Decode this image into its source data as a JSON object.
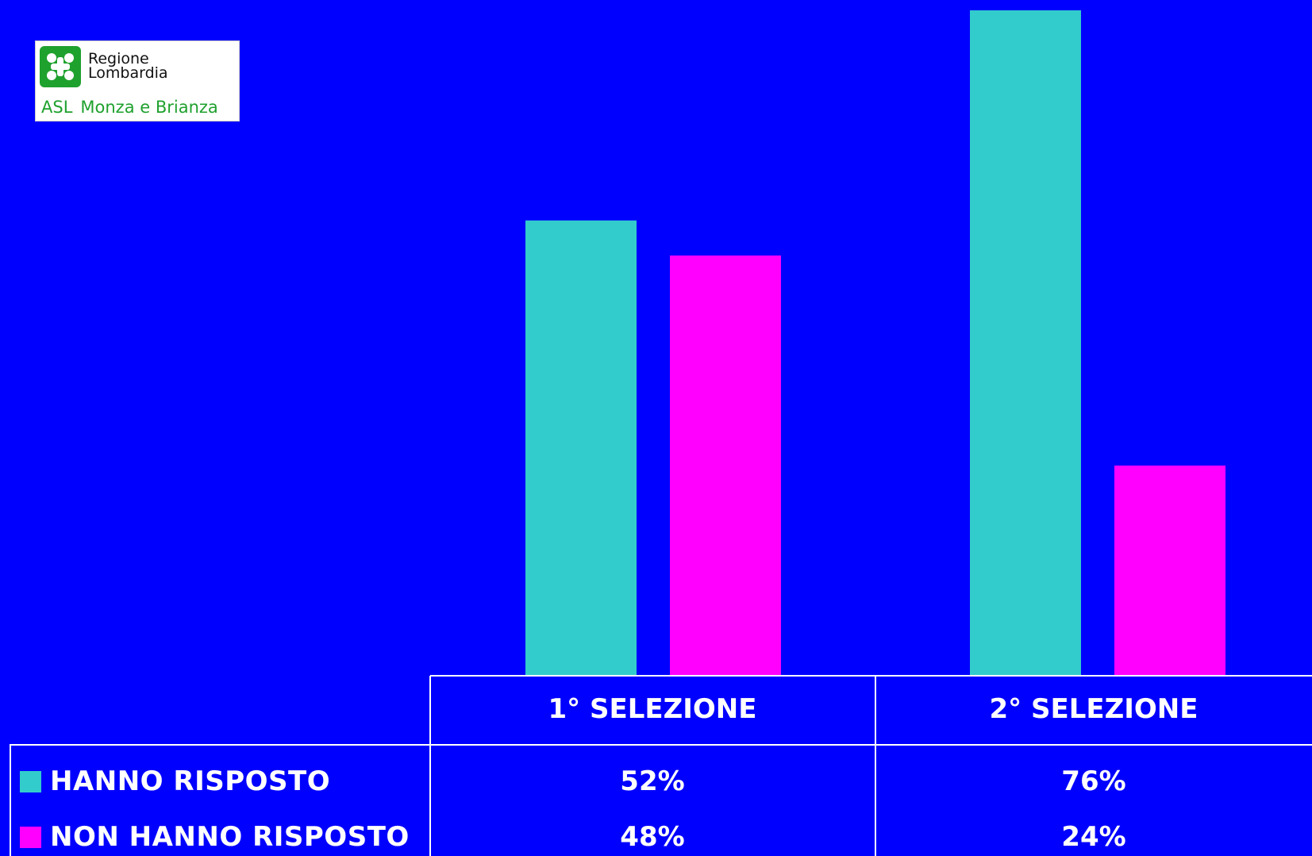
{
  "logo": {
    "line1": "Regione",
    "line2": "Lombardia",
    "asl": "ASL",
    "area": "Monza e Brianza"
  },
  "colors": {
    "background": "#0000FF",
    "hanno": "#33CCCC",
    "non_hanno": "#FF00FF",
    "grid_line": "#FFFFFF"
  },
  "chart_data": {
    "type": "bar",
    "categories": [
      "1° SELEZIONE",
      "2° SELEZIONE"
    ],
    "series": [
      {
        "name": "HANNO RISPOSTO",
        "values": [
          52,
          76
        ],
        "labels": [
          "52%",
          "76%"
        ],
        "color": "#33CCCC"
      },
      {
        "name": "NON HANNO RISPOSTO",
        "values": [
          48,
          24
        ],
        "labels": [
          "48%",
          "24%"
        ],
        "color": "#FF00FF"
      }
    ],
    "ylim": [
      0,
      76
    ],
    "grid": false,
    "legend": "bottom-left data table"
  }
}
